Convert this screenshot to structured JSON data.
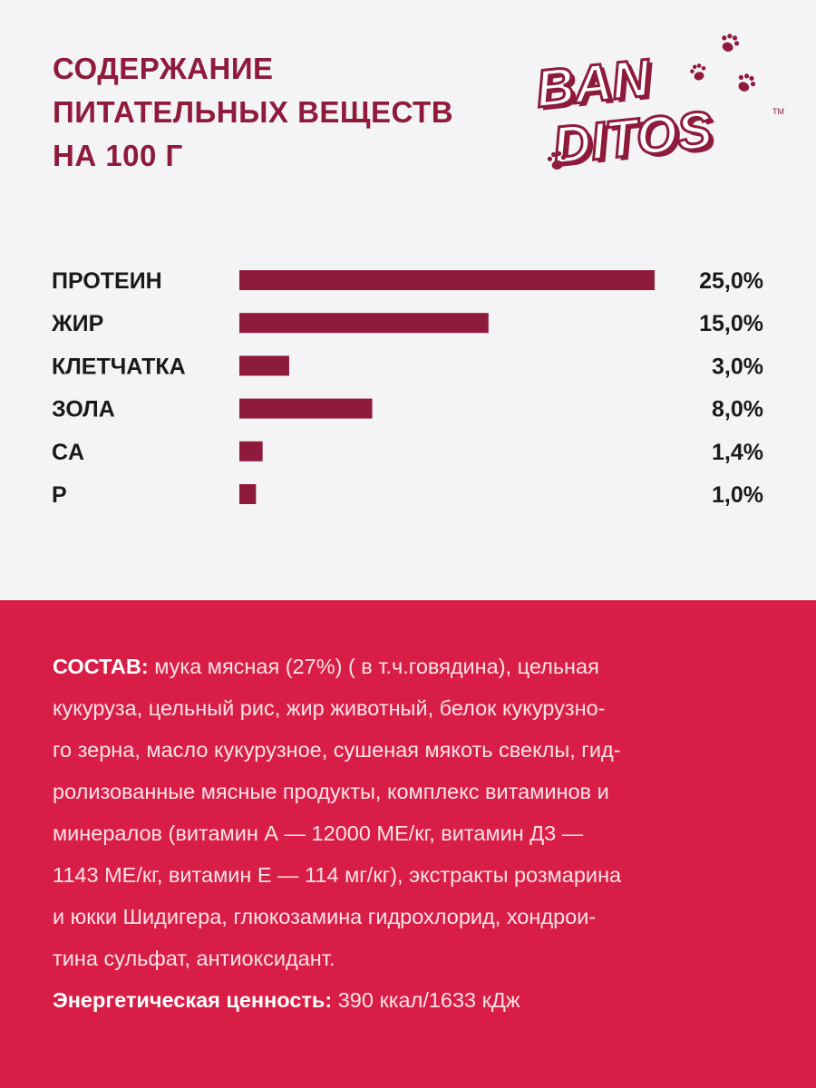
{
  "heading": {
    "line1": "СОДЕРЖАНИЕ",
    "line2": "ПИТАТЕЛЬНЫХ ВЕЩЕСТВ",
    "line3": "НА 100 Г"
  },
  "logo": {
    "line1": "BAN",
    "line2": "DITOS",
    "tm": "TM",
    "icon": "paw-icon"
  },
  "colors": {
    "bar": "#8e1b3c",
    "accent": "#d81e46",
    "text": "#1a1a1a"
  },
  "chart_data": {
    "type": "bar",
    "orientation": "horizontal",
    "categories": [
      "ПРОТЕИН",
      "ЖИР",
      "КЛЕТЧАТКА",
      "ЗОЛА",
      "CA",
      "P"
    ],
    "values": [
      25.0,
      15.0,
      3.0,
      8.0,
      1.4,
      1.0
    ],
    "value_labels": [
      "25,0%",
      "15,0%",
      "3,0%",
      "8,0%",
      "1,4%",
      "1,0%"
    ],
    "title": "",
    "xlabel": "",
    "ylabel": "",
    "xlim": [
      0,
      25
    ]
  },
  "composition": {
    "label": "СОСТАВ:",
    "lines": [
      "мука мясная (27%) ( в т.ч.говядина), цельная",
      "кукуруза, цельный рис, жир животный, белок кукурузно-",
      "го зерна, масло кукурузное, сушеная мякоть свеклы, гид-",
      "ролизованные мясные продукты, комплекс витаминов и",
      "минералов (витамин А — 12000 МЕ/кг, витамин Д3 —",
      "1143 МЕ/кг, витамин Е — 114 мг/кг), экстракты розмарина",
      "и юкки Шидигера, глюкозамина гидрохлорид, хондрои-",
      "тина сульфат, антиоксидант."
    ]
  },
  "energy": {
    "label": "Энергетическая ценность:",
    "value": "390 ккал/1633 кДж"
  }
}
